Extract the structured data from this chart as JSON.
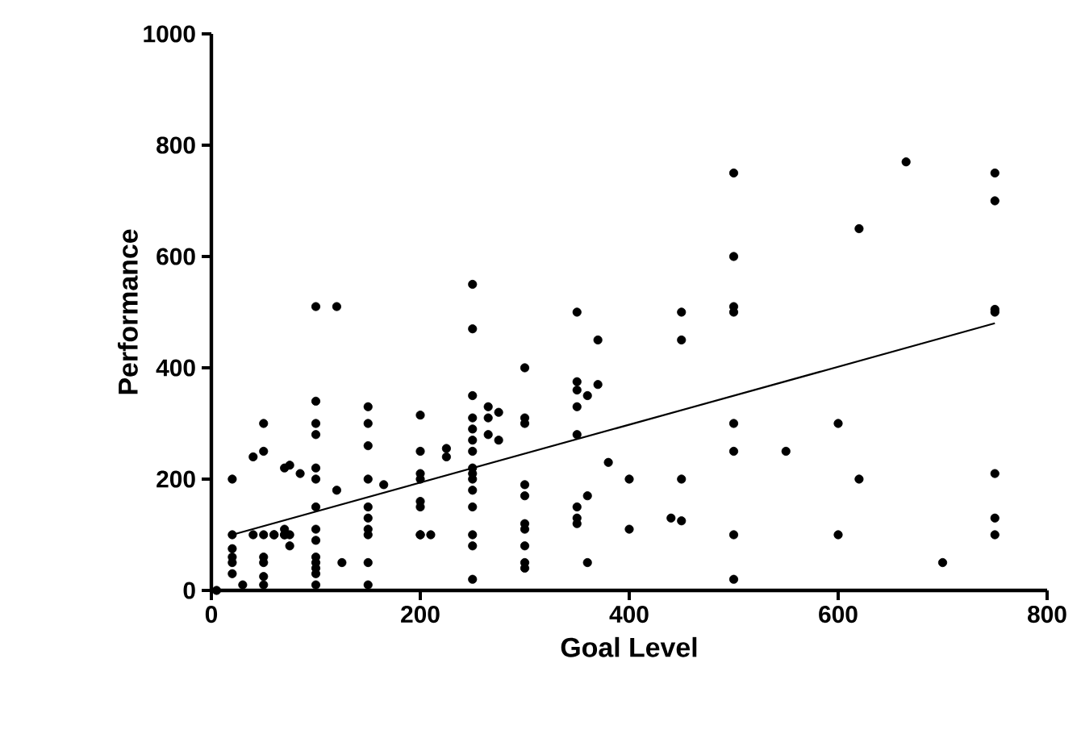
{
  "chart_data": {
    "type": "scatter",
    "xlabel": "Goal Level",
    "ylabel": "Performance",
    "xlim": [
      0,
      800
    ],
    "ylim": [
      0,
      1000
    ],
    "xticks": [
      0,
      200,
      400,
      600,
      800
    ],
    "yticks": [
      0,
      200,
      400,
      600,
      800,
      1000
    ],
    "grid": false,
    "series": [
      {
        "type": "scatter",
        "marker": "circle",
        "color": "#000000",
        "x": [
          5,
          20,
          20,
          20,
          20,
          20,
          20,
          30,
          40,
          40,
          50,
          50,
          50,
          50,
          50,
          50,
          50,
          60,
          60,
          70,
          70,
          70,
          70,
          75,
          75,
          75,
          85,
          100,
          100,
          100,
          100,
          100,
          100,
          100,
          100,
          100,
          100,
          100,
          100,
          100,
          100,
          120,
          120,
          125,
          150,
          150,
          150,
          150,
          150,
          150,
          150,
          150,
          150,
          150,
          165,
          200,
          200,
          200,
          200,
          200,
          200,
          200,
          200,
          210,
          225,
          225,
          250,
          250,
          250,
          250,
          250,
          250,
          250,
          250,
          250,
          250,
          250,
          250,
          250,
          250,
          250,
          265,
          265,
          265,
          275,
          275,
          300,
          300,
          300,
          300,
          300,
          300,
          300,
          300,
          300,
          300,
          350,
          350,
          350,
          350,
          350,
          350,
          350,
          350,
          360,
          360,
          360,
          370,
          370,
          380,
          400,
          400,
          440,
          450,
          450,
          450,
          450,
          500,
          500,
          500,
          500,
          500,
          500,
          500,
          500,
          550,
          600,
          600,
          620,
          620,
          665,
          700,
          750,
          750,
          750,
          750,
          750,
          750,
          750
        ],
        "values": [
          0,
          200,
          100,
          75,
          60,
          50,
          30,
          10,
          240,
          100,
          300,
          250,
          100,
          60,
          50,
          25,
          10,
          100,
          100,
          220,
          110,
          100,
          100,
          225,
          100,
          80,
          210,
          510,
          340,
          300,
          280,
          220,
          200,
          150,
          110,
          90,
          60,
          50,
          40,
          30,
          10,
          510,
          180,
          50,
          330,
          300,
          260,
          200,
          150,
          130,
          110,
          100,
          50,
          10,
          190,
          315,
          250,
          210,
          200,
          160,
          150,
          100,
          100,
          100,
          240,
          255,
          550,
          470,
          350,
          310,
          290,
          270,
          250,
          220,
          210,
          200,
          180,
          150,
          100,
          80,
          20,
          280,
          330,
          310,
          270,
          320,
          400,
          310,
          300,
          190,
          170,
          120,
          110,
          80,
          50,
          40,
          500,
          375,
          360,
          330,
          280,
          150,
          130,
          120,
          350,
          170,
          50,
          450,
          370,
          230,
          200,
          110,
          130,
          500,
          450,
          200,
          125,
          750,
          600,
          510,
          500,
          300,
          250,
          100,
          20,
          250,
          300,
          100,
          650,
          200,
          770,
          50,
          750,
          700,
          505,
          500,
          210,
          130,
          100
        ]
      },
      {
        "type": "line",
        "color": "#000000",
        "x": [
          20,
          750
        ],
        "values": [
          100,
          480
        ]
      }
    ]
  }
}
